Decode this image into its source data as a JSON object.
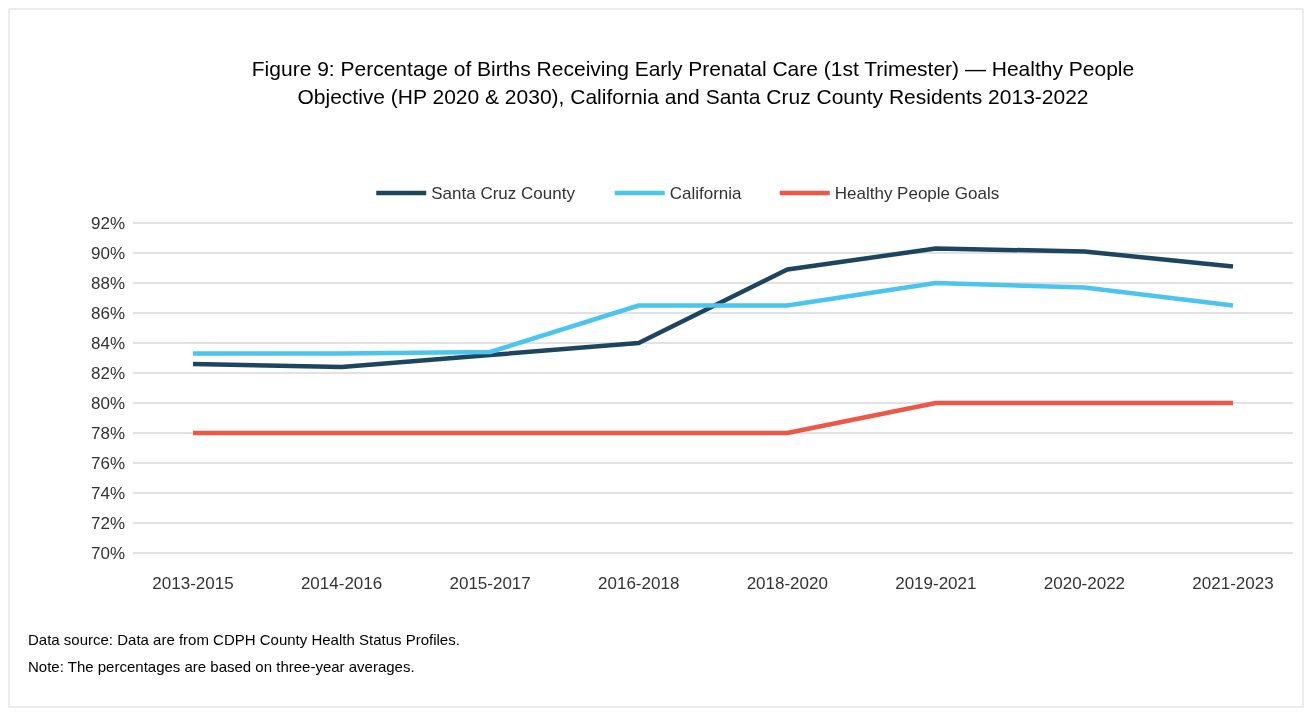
{
  "chart_data": {
    "type": "line",
    "title": "Figure 9:  Percentage of Births Receiving Early Prenatal Care (1st Trimester) — Healthy People Objective (HP 2020 & 2030), California and Santa Cruz County Residents 2013-2022",
    "categories": [
      "2013-2015",
      "2014-2016",
      "2015-2017",
      "2016-2018",
      "2018-2020",
      "2019-2021",
      "2020-2022",
      "2021-2023"
    ],
    "series": [
      {
        "name": "Santa Cruz County",
        "color": "#1d4560",
        "values": [
          82.6,
          82.4,
          83.2,
          84.0,
          88.9,
          90.3,
          90.1,
          89.1
        ]
      },
      {
        "name": "California",
        "color": "#4cc5ee",
        "values": [
          83.3,
          83.3,
          83.4,
          86.5,
          86.5,
          88.0,
          87.7,
          86.5
        ]
      },
      {
        "name": "Healthy People Goals",
        "color": "#ec5845",
        "values": [
          78,
          78,
          78,
          78,
          78,
          80,
          80,
          80
        ]
      }
    ],
    "ylim": [
      70,
      92
    ],
    "yticks": [
      {
        "value": 70,
        "label": "70%"
      },
      {
        "value": 72,
        "label": "72%"
      },
      {
        "value": 74,
        "label": "74%"
      },
      {
        "value": 76,
        "label": "76%"
      },
      {
        "value": 78,
        "label": "78%"
      },
      {
        "value": 80,
        "label": "80%"
      },
      {
        "value": 82,
        "label": "82%"
      },
      {
        "value": 84,
        "label": "84%"
      },
      {
        "value": 86,
        "label": "86%"
      },
      {
        "value": 88,
        "label": "88%"
      },
      {
        "value": 90,
        "label": "90%"
      },
      {
        "value": 92,
        "label": "92%"
      }
    ],
    "grid": "y",
    "legend": "top",
    "marker": "none",
    "line_style": "solid",
    "annotations": [
      "Data source:  Data are from CDPH County Health Status Profiles.",
      "Note: The percentages are based on three-year averages."
    ]
  }
}
